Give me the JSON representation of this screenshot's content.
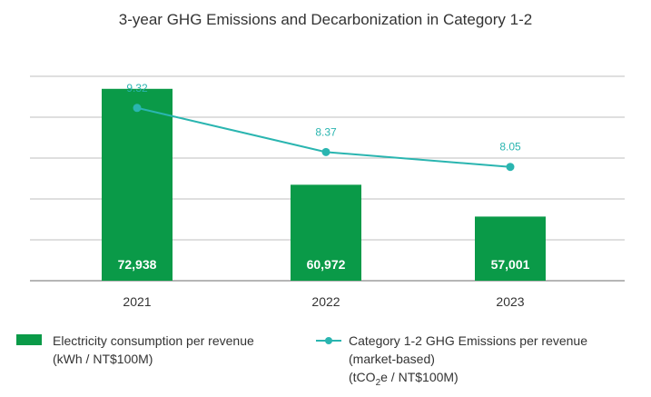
{
  "chart_data": {
    "type": "bar",
    "title": "3-year GHG Emissions and Decarbonization in Category 1-2",
    "categories": [
      "2021",
      "2022",
      "2023"
    ],
    "series": [
      {
        "name": "Electricity consumption per revenue",
        "unit": "(kWh / NT$100M)",
        "type": "bar",
        "values": [
          72938,
          60972,
          57001
        ],
        "labels": [
          "72,938",
          "60,972",
          "57,001"
        ],
        "color": "#0a9a48"
      },
      {
        "name": "Category 1-2 GHG Emissions per revenue",
        "qualifier": "(market-based)",
        "unit_prefix": "(tCO",
        "unit_sub": "2",
        "unit_suffix": "e / NT$100M)",
        "type": "line",
        "values": [
          9.32,
          8.37,
          8.05
        ],
        "labels": [
          "9.32",
          "8.37",
          "8.05"
        ],
        "color": "#2ab5b0"
      }
    ],
    "bar_ylim": [
      49000,
      74500
    ],
    "line_ylim": [
      5.6,
      10.0
    ],
    "grid": true,
    "legend_position": "bottom"
  }
}
